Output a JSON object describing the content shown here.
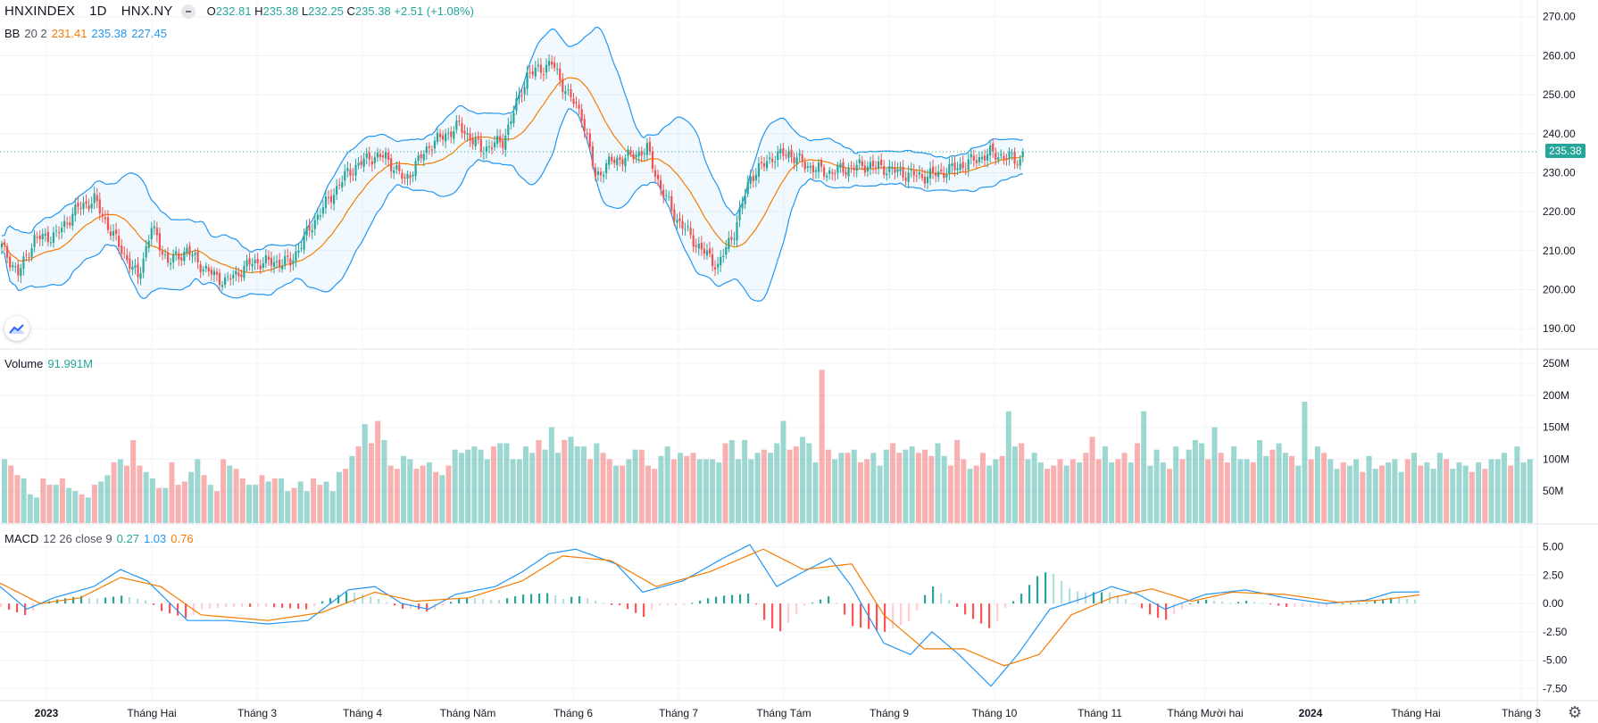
{
  "header": {
    "symbol": "HNXINDEX",
    "interval": "1D",
    "exchange": "HNX.NY",
    "ohlc": {
      "o_label": "O",
      "o": "232.81",
      "h_label": "H",
      "h": "235.38",
      "l_label": "L",
      "l": "232.25",
      "c_label": "C",
      "c": "235.38",
      "change": "+2.51 (+1.08%)"
    }
  },
  "bb_legend": {
    "label": "BB",
    "params": "20 2",
    "basis": "231.41",
    "upper": "235.38",
    "lower": "227.45"
  },
  "volume_legend": {
    "label": "Volume",
    "value": "91.991M"
  },
  "macd_legend": {
    "label": "MACD",
    "params": "12 26 close 9",
    "hist": "0.27",
    "macd": "1.03",
    "signal": "0.76"
  },
  "last_price_tag": "235.38",
  "colors": {
    "up": "#26a69a",
    "down": "#ef5350",
    "bb_basis": "#f57c00",
    "bb_band": "#2196f3",
    "macd": "#2196f3",
    "signal": "#f57c00"
  },
  "icons": {
    "logo": "tradingview-cloud-icon",
    "settings": "gear-icon"
  },
  "chart_data": [
    {
      "type": "candlestick",
      "panel": "price",
      "yticks": [
        "270.00",
        "260.00",
        "250.00",
        "240.00",
        "230.00",
        "220.00",
        "210.00",
        "200.00",
        "190.00"
      ],
      "ylim": [
        185,
        272
      ],
      "x_labels": [
        "2023",
        "Tháng Hai",
        "Tháng 3",
        "Tháng 4",
        "Tháng Năm",
        "Tháng 6",
        "Tháng 7",
        "Tháng Tám",
        "Tháng 9",
        "Tháng 10",
        "Tháng 11",
        "Tháng Mười hai",
        "2024",
        "Tháng Hai",
        "Tháng 3",
        "Tháng"
      ],
      "close_path": [
        [
          0,
          211
        ],
        [
          6,
          204
        ],
        [
          12,
          213
        ],
        [
          20,
          214
        ],
        [
          28,
          221
        ],
        [
          34,
          223
        ],
        [
          40,
          215
        ],
        [
          50,
          203
        ],
        [
          55,
          216
        ],
        [
          61,
          207
        ],
        [
          68,
          210
        ],
        [
          75,
          205
        ],
        [
          82,
          202
        ],
        [
          92,
          207
        ],
        [
          106,
          207
        ],
        [
          116,
          219
        ],
        [
          127,
          230
        ],
        [
          135,
          234
        ],
        [
          141,
          234
        ],
        [
          148,
          228
        ],
        [
          157,
          237
        ],
        [
          168,
          242
        ],
        [
          176,
          236
        ],
        [
          184,
          238
        ],
        [
          193,
          255
        ],
        [
          202,
          258
        ],
        [
          208,
          250
        ],
        [
          213,
          245
        ],
        [
          218,
          229
        ],
        [
          224,
          233
        ],
        [
          230,
          234
        ],
        [
          237,
          236
        ],
        [
          242,
          226
        ],
        [
          248,
          218
        ],
        [
          256,
          211
        ],
        [
          263,
          206
        ],
        [
          269,
          215
        ],
        [
          275,
          229
        ],
        [
          283,
          234
        ],
        [
          289,
          235
        ],
        [
          295,
          232
        ],
        [
          303,
          230
        ],
        [
          310,
          231
        ],
        [
          318,
          232
        ],
        [
          325,
          231
        ],
        [
          330,
          230
        ],
        [
          338,
          229
        ],
        [
          345,
          230
        ],
        [
          353,
          232
        ],
        [
          363,
          235
        ],
        [
          375,
          233
        ]
      ],
      "last_close": 235.38
    },
    {
      "type": "bar",
      "panel": "volume",
      "yticks": [
        "250M",
        "200M",
        "150M",
        "100M",
        "50M"
      ],
      "ylim": [
        0,
        260
      ],
      "values_million": [
        100,
        90,
        75,
        70,
        45,
        40,
        70,
        60,
        60,
        70,
        55,
        50,
        45,
        40,
        60,
        65,
        75,
        95,
        100,
        90,
        130,
        90,
        80,
        70,
        55,
        55,
        95,
        60,
        65,
        80,
        100,
        75,
        60,
        50,
        100,
        90,
        85,
        70,
        60,
        60,
        75,
        65,
        70,
        70,
        50,
        55,
        65,
        50,
        70,
        60,
        65,
        50,
        80,
        85,
        105,
        120,
        155,
        125,
        160,
        130,
        90,
        85,
        105,
        100,
        85,
        90,
        95,
        80,
        75,
        90,
        115,
        110,
        115,
        120,
        115,
        100,
        120,
        125,
        125,
        100,
        100,
        120,
        110,
        130,
        115,
        150,
        110,
        130,
        135,
        120,
        120,
        100,
        125,
        110,
        100,
        90,
        90,
        100,
        115,
        115,
        90,
        85,
        105,
        120,
        100,
        110,
        105,
        110,
        100,
        100,
        100,
        95,
        125,
        130,
        100,
        130,
        100,
        110,
        115,
        110,
        125,
        160,
        115,
        120,
        135,
        125,
        95,
        240,
        115,
        100,
        110,
        110,
        115,
        95,
        100,
        110,
        90,
        115,
        125,
        110,
        115,
        120,
        110,
        115,
        105,
        125,
        105,
        90,
        130,
        100,
        85,
        90,
        110,
        90,
        100,
        105,
        175,
        120,
        125,
        100,
        110,
        95,
        85,
        90,
        100,
        90,
        100,
        95,
        110,
        135,
        100,
        120,
        95,
        100,
        110,
        95,
        125,
        175,
        90,
        115,
        95,
        85,
        120,
        100,
        115,
        130,
        125,
        100,
        150,
        110,
        95,
        120,
        100,
        100,
        95,
        130,
        105,
        115,
        125,
        110,
        105,
        90,
        190,
        100,
        120,
        110,
        100,
        85,
        95,
        90,
        100,
        80,
        105,
        85,
        90,
        95,
        100,
        80,
        100,
        110,
        90,
        95,
        85,
        110,
        100,
        85,
        95,
        90,
        80,
        95,
        85,
        100,
        100,
        110,
        90,
        120,
        95,
        100
      ],
      "up": [
        1,
        0,
        0,
        1,
        1,
        1,
        0,
        0,
        1,
        0,
        1,
        1,
        0,
        1,
        0,
        1,
        1,
        0,
        1,
        0,
        0,
        0,
        1,
        1,
        0,
        1,
        0,
        0,
        0,
        1,
        1,
        0,
        1,
        0,
        0,
        1,
        0,
        0,
        1,
        1,
        0,
        1,
        0,
        1,
        1,
        0,
        1,
        1,
        0,
        0,
        1,
        1,
        1,
        0,
        1,
        0,
        1,
        0,
        0,
        1,
        0,
        0,
        1,
        1,
        0,
        0,
        1,
        0,
        1,
        0,
        1,
        1,
        1,
        1,
        1,
        1,
        0,
        1,
        1,
        1,
        1,
        1,
        1,
        0,
        1,
        1,
        1,
        0,
        1,
        1,
        1,
        0,
        1,
        0,
        0,
        1,
        0,
        1,
        1,
        0,
        0,
        0,
        1,
        1,
        0,
        1,
        0,
        0,
        1,
        1,
        1,
        1,
        0,
        1,
        1,
        1,
        1,
        1,
        0,
        1,
        1,
        1,
        0,
        0,
        1,
        1,
        1,
        0,
        0,
        1,
        1,
        0,
        1,
        0,
        0,
        1,
        1,
        1,
        0,
        0,
        1,
        1,
        0,
        0,
        0,
        1,
        1,
        0,
        0,
        0,
        1,
        0,
        0,
        1,
        1,
        0,
        1,
        1,
        0,
        1,
        1,
        1,
        0,
        0,
        0,
        1,
        0,
        1,
        0,
        0,
        0,
        1,
        1,
        0,
        0,
        1,
        0,
        1,
        1,
        1,
        1,
        0,
        1,
        0,
        1,
        1,
        1,
        0,
        1,
        0,
        0,
        1,
        1,
        1,
        0,
        1,
        1,
        0,
        1,
        1,
        0,
        1,
        1,
        0,
        1,
        0,
        1,
        1,
        0,
        1,
        1,
        0,
        1,
        1,
        0,
        1,
        1,
        1,
        0,
        1,
        0,
        1,
        1,
        1,
        0,
        1,
        1,
        1,
        0,
        1,
        0,
        1,
        1,
        1,
        0,
        1,
        1,
        1,
        0,
        1
      ]
    },
    {
      "type": "line",
      "panel": "macd",
      "yticks": [
        "5.00",
        "2.50",
        "0.00",
        "-2.50",
        "-5.00",
        "-7.50"
      ],
      "ylim": [
        -8.5,
        6
      ],
      "macd_path": [
        [
          0,
          1.5
        ],
        [
          10,
          -0.5
        ],
        [
          20,
          0.5
        ],
        [
          35,
          1.5
        ],
        [
          45,
          3.0
        ],
        [
          55,
          2.0
        ],
        [
          70,
          -1.5
        ],
        [
          85,
          -1.5
        ],
        [
          100,
          -1.8
        ],
        [
          115,
          -1.5
        ],
        [
          130,
          1.2
        ],
        [
          140,
          1.5
        ],
        [
          150,
          0.0
        ],
        [
          160,
          -0.5
        ],
        [
          170,
          0.8
        ],
        [
          185,
          1.5
        ],
        [
          195,
          2.8
        ],
        [
          205,
          4.4
        ],
        [
          215,
          4.8
        ],
        [
          230,
          3.5
        ],
        [
          240,
          1.0
        ],
        [
          255,
          2.0
        ],
        [
          270,
          4.0
        ],
        [
          280,
          5.2
        ],
        [
          290,
          1.5
        ],
        [
          300,
          2.8
        ],
        [
          310,
          4.0
        ],
        [
          318,
          1.5
        ],
        [
          330,
          -3.5
        ],
        [
          340,
          -4.5
        ],
        [
          348,
          -2.5
        ],
        [
          358,
          -4.5
        ],
        [
          370,
          -7.3
        ],
        [
          380,
          -4.5
        ],
        [
          392,
          -0.5
        ],
        [
          405,
          0.5
        ],
        [
          415,
          1.5
        ],
        [
          425,
          0.8
        ],
        [
          435,
          -0.5
        ],
        [
          450,
          0.8
        ],
        [
          465,
          1.2
        ],
        [
          480,
          0.5
        ],
        [
          495,
          0.0
        ],
        [
          510,
          0.3
        ],
        [
          520,
          1.0
        ],
        [
          530,
          1.03
        ]
      ],
      "signal_path": [
        [
          0,
          1.8
        ],
        [
          15,
          0.0
        ],
        [
          30,
          0.5
        ],
        [
          45,
          2.3
        ],
        [
          60,
          1.5
        ],
        [
          75,
          -1.0
        ],
        [
          100,
          -1.5
        ],
        [
          120,
          -0.8
        ],
        [
          140,
          1.0
        ],
        [
          155,
          0.2
        ],
        [
          175,
          0.5
        ],
        [
          195,
          2.0
        ],
        [
          210,
          4.2
        ],
        [
          228,
          3.8
        ],
        [
          245,
          1.5
        ],
        [
          265,
          2.8
        ],
        [
          285,
          4.8
        ],
        [
          300,
          3.0
        ],
        [
          318,
          3.5
        ],
        [
          330,
          -1.0
        ],
        [
          345,
          -4.0
        ],
        [
          360,
          -4.0
        ],
        [
          375,
          -5.5
        ],
        [
          388,
          -4.5
        ],
        [
          400,
          -1.0
        ],
        [
          415,
          0.5
        ],
        [
          430,
          1.3
        ],
        [
          445,
          0.2
        ],
        [
          460,
          1.0
        ],
        [
          480,
          0.8
        ],
        [
          500,
          0.1
        ],
        [
          515,
          0.3
        ],
        [
          530,
          0.76
        ]
      ]
    }
  ]
}
